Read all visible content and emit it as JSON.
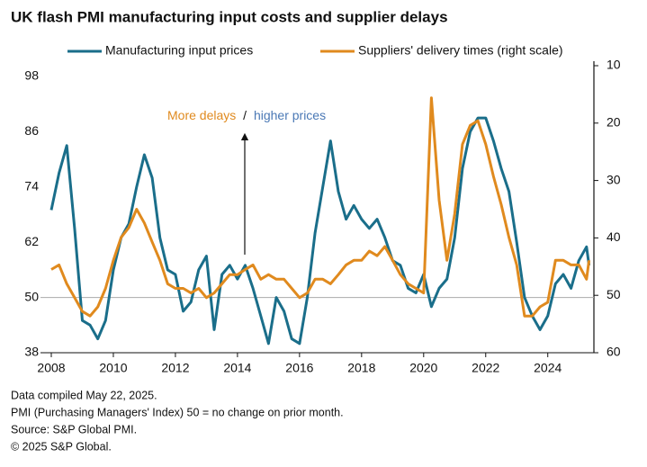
{
  "chart_data": {
    "type": "line",
    "title": "UK flash PMI manufacturing input costs and supplier delays",
    "annotation": [
      "More delays",
      "/",
      "higher prices"
    ],
    "footnotes": [
      "Data compiled May 22, 2025.",
      "PMI (Purchasing Managers' Index) 50 = no change on prior month.",
      "Source: S&P Global PMI.",
      "© 2025 S&P Global."
    ],
    "xlim": [
      2008,
      2025.4
    ],
    "xticks": [
      2008,
      2010,
      2012,
      2014,
      2016,
      2018,
      2020,
      2022,
      2024
    ],
    "ylim": [
      38,
      98
    ],
    "yticks": [
      38,
      50,
      62,
      74,
      86,
      98
    ],
    "y2lim": [
      60,
      10
    ],
    "y2ticks": [
      10,
      20,
      30,
      40,
      50,
      60
    ],
    "reference_line": 50,
    "x": [
      2008.0,
      2008.25,
      2008.5,
      2008.75,
      2009.0,
      2009.25,
      2009.5,
      2009.75,
      2010.0,
      2010.25,
      2010.5,
      2010.75,
      2011.0,
      2011.25,
      2011.5,
      2011.75,
      2012.0,
      2012.25,
      2012.5,
      2012.75,
      2013.0,
      2013.25,
      2013.5,
      2013.75,
      2014.0,
      2014.25,
      2014.5,
      2014.75,
      2015.0,
      2015.25,
      2015.5,
      2015.75,
      2016.0,
      2016.25,
      2016.5,
      2016.75,
      2017.0,
      2017.25,
      2017.5,
      2017.75,
      2018.0,
      2018.25,
      2018.5,
      2018.75,
      2019.0,
      2019.25,
      2019.5,
      2019.75,
      2020.0,
      2020.25,
      2020.5,
      2020.75,
      2021.0,
      2021.25,
      2021.5,
      2021.75,
      2022.0,
      2022.25,
      2022.5,
      2022.75,
      2023.0,
      2023.25,
      2023.5,
      2023.75,
      2024.0,
      2024.25,
      2024.5,
      2024.75,
      2025.0,
      2025.25,
      2025.33
    ],
    "series": [
      {
        "name": "Manufacturing input prices",
        "color": "#1a6e8a",
        "values": [
          69,
          77,
          83,
          65,
          45,
          44,
          41,
          45,
          56,
          63,
          66,
          74,
          81,
          76,
          63,
          56,
          55,
          47,
          49,
          56,
          59,
          43,
          55,
          57,
          54,
          57,
          52,
          46,
          40,
          50,
          47,
          41,
          40,
          50,
          64,
          74,
          84,
          73,
          67,
          70,
          67,
          65,
          67,
          63,
          58,
          57,
          52,
          51,
          55,
          48,
          52,
          54,
          63,
          78,
          86,
          89,
          89,
          84,
          78,
          73,
          62,
          50,
          46,
          43,
          46,
          53,
          55,
          52,
          58,
          61,
          57
        ]
      },
      {
        "name": "Suppliers' delivery times (right scale)",
        "color": "#e08a1e",
        "axis": "y2",
        "values": [
          45.5,
          44.7,
          48,
          50.4,
          52.8,
          53.6,
          52,
          48.8,
          43.9,
          39.9,
          38.2,
          35.0,
          37.4,
          40.7,
          43.9,
          48,
          48.8,
          48.8,
          49.6,
          48.8,
          50.4,
          49.6,
          48,
          46.4,
          46.4,
          45.5,
          44.7,
          47.2,
          46.4,
          47.2,
          47.2,
          48.8,
          50.4,
          49.6,
          47.2,
          47.2,
          48,
          46.4,
          44.7,
          43.9,
          43.9,
          42.3,
          43.1,
          41.5,
          43.9,
          46.4,
          48,
          48.8,
          49.6,
          15.6,
          33.4,
          43.9,
          35.8,
          23.7,
          20.4,
          19.6,
          23.7,
          29.3,
          34.2,
          39.9,
          44.7,
          53.6,
          53.6,
          52,
          51.2,
          43.9,
          43.9,
          44.7,
          44.7,
          47.2,
          43.9
        ]
      }
    ]
  }
}
